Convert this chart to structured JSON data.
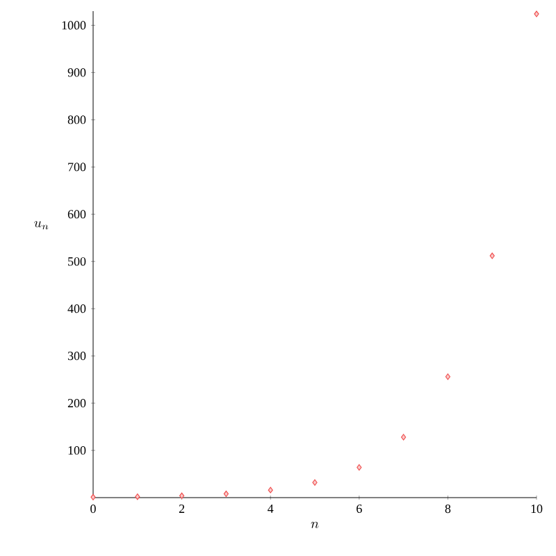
{
  "chart_data": {
    "type": "scatter",
    "xlabel": "n",
    "ylabel": "u_{n}",
    "x": [
      0,
      1,
      2,
      3,
      4,
      5,
      6,
      7,
      8,
      9,
      10
    ],
    "values": [
      1,
      2,
      4,
      8,
      16,
      32,
      64,
      128,
      256,
      512,
      1024
    ],
    "color": "#f05050",
    "marker": "diamond",
    "xlim": [
      0,
      10
    ],
    "ylim": [
      0,
      1030
    ],
    "xticks": [
      0,
      2,
      4,
      6,
      8,
      10
    ],
    "yticks": [
      100,
      200,
      300,
      400,
      500,
      600,
      700,
      800,
      900,
      1000
    ]
  }
}
